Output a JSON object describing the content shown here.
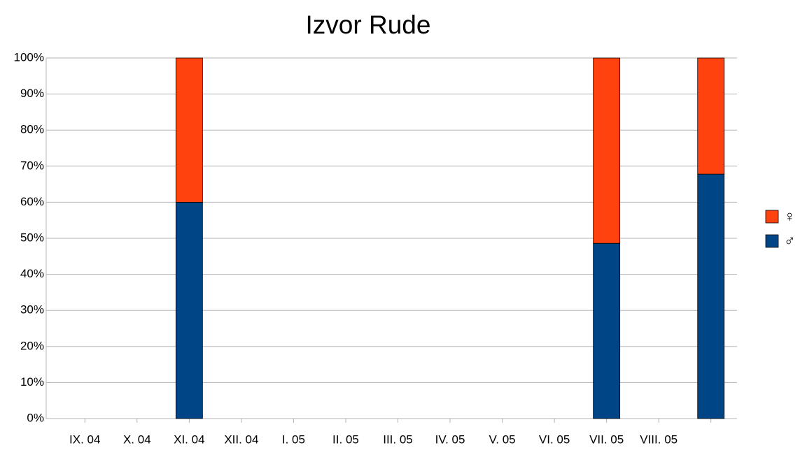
{
  "chart_data": {
    "type": "stacked_bar",
    "title": "Izvor Rude",
    "categories": [
      "IX. 04",
      "X. 04",
      "XI. 04",
      "XII. 04",
      "I. 05",
      "II. 05",
      "III. 05",
      "IV. 05",
      "V. 05",
      "VI. 05",
      "VII. 05",
      "VIII. 05",
      null
    ],
    "series": [
      {
        "name": "♂",
        "color": "#004586",
        "values": [
          null,
          null,
          60,
          null,
          null,
          null,
          null,
          null,
          null,
          null,
          48.6,
          null,
          67.8
        ]
      },
      {
        "name": "♀",
        "color": "#ff420e",
        "values": [
          null,
          null,
          40,
          null,
          null,
          null,
          null,
          null,
          null,
          null,
          51.4,
          null,
          32.2
        ]
      }
    ],
    "ylim": [
      0,
      100
    ],
    "yticks": [
      {
        "value": 0,
        "label": "0%"
      },
      {
        "value": 10,
        "label": "10%"
      },
      {
        "value": 20,
        "label": "20%"
      },
      {
        "value": 30,
        "label": "30%"
      },
      {
        "value": 40,
        "label": "40%"
      },
      {
        "value": 50,
        "label": "50%"
      },
      {
        "value": 60,
        "label": "60%"
      },
      {
        "value": 70,
        "label": "70%"
      },
      {
        "value": 80,
        "label": "80%"
      },
      {
        "value": 90,
        "label": "90%"
      },
      {
        "value": 100,
        "label": "100%"
      }
    ],
    "grid": true,
    "legend": "right"
  }
}
